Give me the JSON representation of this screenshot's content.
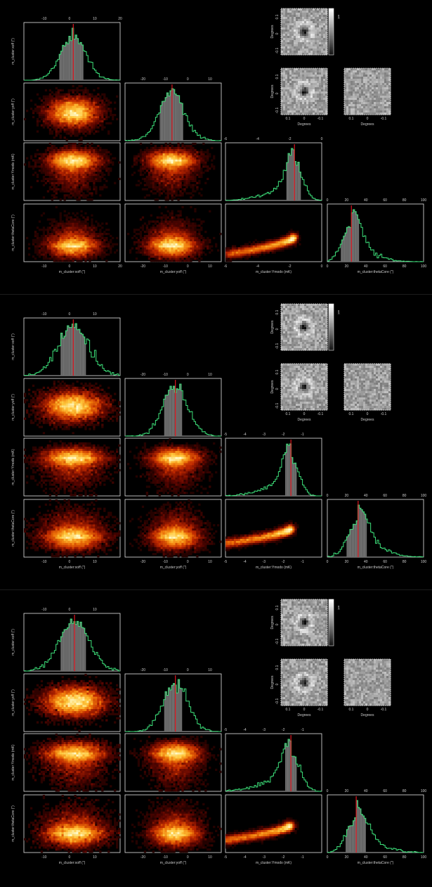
{
  "chart_data": [
    {
      "type": "corner-plot",
      "params": [
        {
          "label": "m_cluster:xoff (\")",
          "range": [
            -18,
            20
          ],
          "ticks": [
            -10,
            0,
            10,
            20
          ],
          "mean": 1.5,
          "sd": 5.0,
          "ci": [
            -4.0,
            5.5
          ],
          "skew": 0
        },
        {
          "label": "m_cluster:yoff (\")",
          "range": [
            -28,
            15
          ],
          "ticks": [
            -20,
            -10,
            0,
            10
          ],
          "mean": -7.0,
          "sd": 5.5,
          "ci": [
            -12.5,
            -2.0
          ],
          "skew": 0
        },
        {
          "label": "m_cluster:Ymodo (mK)",
          "range": [
            -6,
            0
          ],
          "ticks": [
            -6,
            -4,
            -2,
            0
          ],
          "mean": -1.7,
          "sd": 0.5,
          "ci": [
            -2.2,
            -1.3
          ],
          "skew": -1
        },
        {
          "label": "m_cluster:thetaCore (\")",
          "range": [
            0,
            100
          ],
          "ticks": [
            0,
            20,
            40,
            60,
            80,
            100
          ],
          "mean": 25,
          "sd": 9,
          "ci": [
            14,
            33
          ],
          "skew": 1
        }
      ],
      "map_axis_label": "Degrees",
      "map_ticks": [
        "0.1",
        "0",
        "-0.1"
      ],
      "colorbar_label": "mK"
    },
    {
      "type": "corner-plot",
      "params": [
        {
          "label": "m_cluster:xoff (\")",
          "range": [
            -18,
            20
          ],
          "ticks": [
            -10,
            0,
            10
          ],
          "mean": 1.5,
          "sd": 6.0,
          "ci": [
            -3.5,
            6.5
          ],
          "skew": 0
        },
        {
          "label": "m_cluster:yoff (\")",
          "range": [
            -28,
            15
          ],
          "ticks": [
            -20,
            -10,
            0,
            10
          ],
          "mean": -5.5,
          "sd": 5.5,
          "ci": [
            -10.5,
            -2.5
          ],
          "skew": 0
        },
        {
          "label": "m_cluster:Ymodo (mK)",
          "range": [
            -5,
            0
          ],
          "ticks": [
            -5,
            -4,
            -3,
            -2,
            -1
          ],
          "mean": -1.6,
          "sd": 0.4,
          "ci": [
            -1.9,
            -1.3
          ],
          "skew": -1
        },
        {
          "label": "m_cluster:thetaCore (\")",
          "range": [
            0,
            100
          ],
          "ticks": [
            0,
            20,
            40,
            60,
            80,
            100
          ],
          "mean": 32,
          "sd": 10,
          "ci": [
            20,
            41
          ],
          "skew": 1
        }
      ],
      "map_axis_label": "Degrees",
      "map_ticks": [
        "0.1",
        "0",
        "-0.1"
      ],
      "colorbar_label": "mK"
    },
    {
      "type": "corner-plot",
      "params": [
        {
          "label": "m_cluster:xoff (\")",
          "range": [
            -18,
            20
          ],
          "ticks": [
            -10,
            0,
            10
          ],
          "mean": 2.0,
          "sd": 6.0,
          "ci": [
            -3.5,
            6.5
          ],
          "skew": 0
        },
        {
          "label": "m_cluster:yoff (\")",
          "range": [
            -28,
            15
          ],
          "ticks": [
            -20,
            -10,
            0,
            10
          ],
          "mean": -5.5,
          "sd": 5.5,
          "ci": [
            -10.5,
            -2.5
          ],
          "skew": 0
        },
        {
          "label": "m_cluster:Ymodo (mK)",
          "range": [
            -5,
            0
          ],
          "ticks": [
            -5,
            -4,
            -3,
            -2,
            -1
          ],
          "mean": -1.6,
          "sd": 0.45,
          "ci": [
            -1.9,
            -1.3
          ],
          "skew": -1
        },
        {
          "label": "m_cluster:thetaCore (\")",
          "range": [
            0,
            100
          ],
          "ticks": [
            0,
            20,
            40,
            60,
            80,
            100
          ],
          "mean": 30,
          "sd": 10,
          "ci": [
            19,
            40
          ],
          "skew": 1
        }
      ],
      "map_axis_label": "Degrees",
      "map_ticks": [
        "0.1",
        "0",
        "-0.1"
      ],
      "colorbar_label": "mK"
    }
  ]
}
